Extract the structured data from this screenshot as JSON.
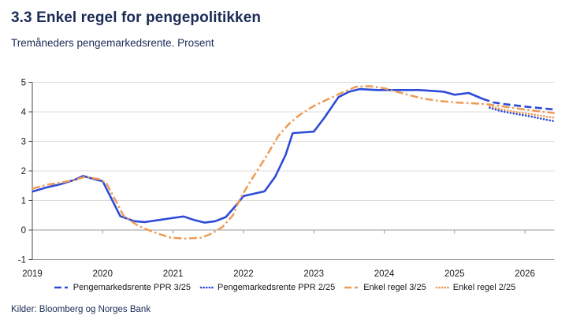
{
  "header": {
    "title": "3.3 Enkel regel for pengepolitikken",
    "subtitle": "Tremåneders pengemarkedsrente. Prosent"
  },
  "footer": {
    "source": "Kilder: Bloomberg og Norges Bank"
  },
  "chart_data": {
    "type": "line",
    "title": "3.3 Enkel regel for pengepolitikken",
    "subtitle": "Tremåneders pengemarkedsrente. Prosent",
    "xlabel": "",
    "ylabel": "",
    "xlim": [
      2019,
      2026.42
    ],
    "ylim": [
      -1,
      5
    ],
    "x_ticks": [
      2019,
      2020,
      2021,
      2022,
      2023,
      2024,
      2025,
      2026
    ],
    "y_ticks": [
      -1,
      0,
      1,
      2,
      3,
      4,
      5
    ],
    "grid": "horizontal",
    "legend_position": "bottom",
    "colors": {
      "blue": "#2d4bd7",
      "orange": "#ed9b55",
      "grid": "#dcdcdc",
      "axis": "#4a4a4a",
      "zeroline": "#9a9a9a",
      "text": "#1a1a1a"
    },
    "series": [
      {
        "name": "Pengemarkedsrente PPR 3/25",
        "color": "#2d4bd7",
        "legend_dash": "dashed",
        "history_style": "solid",
        "forecast_style": "dashed",
        "history": [
          [
            2019.0,
            1.3
          ],
          [
            2019.2,
            1.44
          ],
          [
            2019.4,
            1.55
          ],
          [
            2019.6,
            1.7
          ],
          [
            2019.72,
            1.83
          ],
          [
            2019.9,
            1.71
          ],
          [
            2020.0,
            1.65
          ],
          [
            2020.25,
            0.47
          ],
          [
            2020.45,
            0.3
          ],
          [
            2020.6,
            0.27
          ],
          [
            2020.8,
            0.34
          ],
          [
            2021.0,
            0.41
          ],
          [
            2021.15,
            0.46
          ],
          [
            2021.3,
            0.34
          ],
          [
            2021.45,
            0.25
          ],
          [
            2021.6,
            0.3
          ],
          [
            2021.75,
            0.44
          ],
          [
            2021.9,
            0.85
          ],
          [
            2022.0,
            1.15
          ],
          [
            2022.15,
            1.23
          ],
          [
            2022.3,
            1.31
          ],
          [
            2022.45,
            1.8
          ],
          [
            2022.6,
            2.55
          ],
          [
            2022.7,
            3.28
          ],
          [
            2023.0,
            3.33
          ],
          [
            2023.15,
            3.8
          ],
          [
            2023.35,
            4.5
          ],
          [
            2023.5,
            4.68
          ],
          [
            2023.65,
            4.77
          ],
          [
            2023.9,
            4.74
          ],
          [
            2024.2,
            4.74
          ],
          [
            2024.5,
            4.74
          ],
          [
            2024.75,
            4.7
          ],
          [
            2024.85,
            4.68
          ],
          [
            2025.0,
            4.58
          ],
          [
            2025.2,
            4.64
          ],
          [
            2025.4,
            4.44
          ]
        ],
        "forecast": [
          [
            2025.4,
            4.44
          ],
          [
            2025.55,
            4.32
          ],
          [
            2025.75,
            4.25
          ],
          [
            2026.0,
            4.18
          ],
          [
            2026.2,
            4.13
          ],
          [
            2026.42,
            4.08
          ]
        ]
      },
      {
        "name": "Pengemarkedsrente PPR 2/25",
        "color": "#2d4bd7",
        "legend_dash": "dotted",
        "style": "dotted",
        "points": [
          [
            2025.5,
            4.14
          ],
          [
            2025.65,
            4.03
          ],
          [
            2025.85,
            3.94
          ],
          [
            2026.05,
            3.86
          ],
          [
            2026.25,
            3.76
          ],
          [
            2026.42,
            3.68
          ]
        ]
      },
      {
        "name": "Enkel regel 3/25",
        "color": "#ed9b55",
        "legend_dash": "dashdot",
        "style": "dashdot",
        "points": [
          [
            2019.0,
            1.4
          ],
          [
            2019.2,
            1.53
          ],
          [
            2019.4,
            1.6
          ],
          [
            2019.6,
            1.7
          ],
          [
            2019.75,
            1.8
          ],
          [
            2019.95,
            1.72
          ],
          [
            2020.05,
            1.6
          ],
          [
            2020.3,
            0.47
          ],
          [
            2020.5,
            0.15
          ],
          [
            2020.7,
            -0.05
          ],
          [
            2020.95,
            -0.25
          ],
          [
            2021.15,
            -0.29
          ],
          [
            2021.4,
            -0.26
          ],
          [
            2021.55,
            -0.12
          ],
          [
            2021.7,
            0.1
          ],
          [
            2021.85,
            0.5
          ],
          [
            2021.95,
            1.05
          ],
          [
            2022.1,
            1.65
          ],
          [
            2022.3,
            2.4
          ],
          [
            2022.5,
            3.2
          ],
          [
            2022.65,
            3.6
          ],
          [
            2022.8,
            3.9
          ],
          [
            2023.0,
            4.2
          ],
          [
            2023.2,
            4.43
          ],
          [
            2023.4,
            4.65
          ],
          [
            2023.6,
            4.85
          ],
          [
            2023.8,
            4.87
          ],
          [
            2024.0,
            4.8
          ],
          [
            2024.15,
            4.7
          ],
          [
            2024.35,
            4.57
          ],
          [
            2024.55,
            4.45
          ],
          [
            2024.75,
            4.38
          ],
          [
            2025.0,
            4.32
          ],
          [
            2025.25,
            4.29
          ],
          [
            2025.5,
            4.25
          ],
          [
            2025.75,
            4.16
          ],
          [
            2026.0,
            4.08
          ],
          [
            2026.2,
            4.02
          ],
          [
            2026.42,
            3.96
          ]
        ]
      },
      {
        "name": "Enkel regel 2/25",
        "color": "#ed9b55",
        "legend_dash": "dotted",
        "style": "dotted",
        "points": [
          [
            2025.5,
            4.2
          ],
          [
            2025.65,
            4.09
          ],
          [
            2025.85,
            4.0
          ],
          [
            2026.05,
            3.93
          ],
          [
            2026.25,
            3.86
          ],
          [
            2026.42,
            3.8
          ]
        ]
      }
    ]
  }
}
